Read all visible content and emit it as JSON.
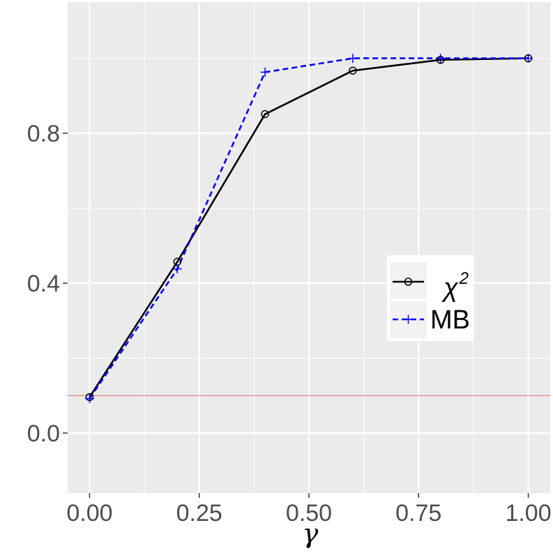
{
  "chart_data": {
    "type": "line",
    "xlabel": "γ",
    "ylabel": "",
    "xlim": [
      -0.05,
      1.05
    ],
    "ylim": [
      -0.16,
      1.15
    ],
    "x_ticks": [
      0.0,
      0.25,
      0.5,
      0.75,
      1.0
    ],
    "x_tick_labels": [
      "0.00",
      "0.25",
      "0.50",
      "0.75",
      "1.00"
    ],
    "y_ticks": [
      0.0,
      0.4,
      0.8
    ],
    "y_tick_labels": [
      "0.0",
      "0.4",
      "0.8"
    ],
    "grid": true,
    "legend_position": "right",
    "series": [
      {
        "name": "χ",
        "name_superscript": "2",
        "color": "#000000",
        "line_style": "solid",
        "marker": "circle",
        "x": [
          0.0,
          0.2,
          0.4,
          0.6,
          0.8,
          1.0
        ],
        "values": [
          0.096,
          0.457,
          0.851,
          0.967,
          0.996,
          1.0
        ]
      },
      {
        "name": "MB",
        "color": "#0000ff",
        "line_style": "dashed",
        "marker": "plus",
        "x": [
          0.0,
          0.2,
          0.4,
          0.6,
          0.8,
          1.0
        ],
        "values": [
          0.092,
          0.438,
          0.963,
          1.0,
          1.0,
          1.0
        ]
      }
    ],
    "reference_line": {
      "y": 0.1,
      "color": "#e06666"
    }
  }
}
